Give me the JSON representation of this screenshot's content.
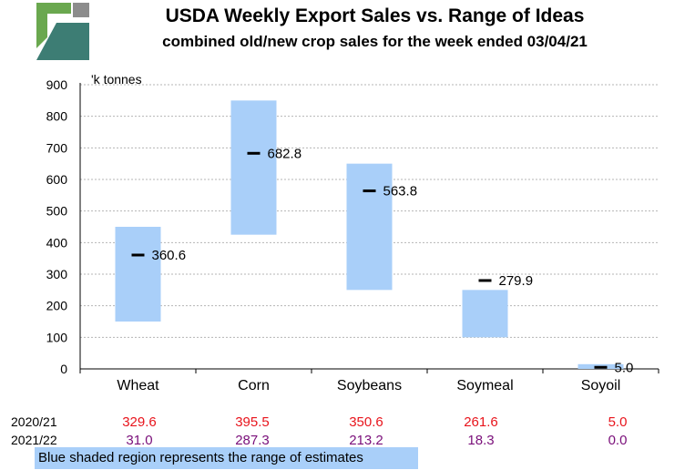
{
  "colors": {
    "range_fill": "#a9cff9",
    "marker": "#000000",
    "old_crop": "#e8141c",
    "new_crop": "#7a0f7a",
    "gridline": "#b5b5b5",
    "logo_green": "#6aa84f",
    "logo_teal": "#3d7d74",
    "logo_gray": "#8c8c8c"
  },
  "logo": {
    "name": "company-logo"
  },
  "chart_data": {
    "type": "range-bar",
    "title": "USDA Weekly Export Sales vs. Range of Ideas",
    "subtitle": "combined old/new crop sales for the week ended 03/04/21",
    "unit_label": "'k tonnes",
    "ylim": [
      0,
      900
    ],
    "yticks": [
      0,
      100,
      200,
      300,
      400,
      500,
      600,
      700,
      800,
      900
    ],
    "grid": true,
    "categories": [
      "Wheat",
      "Corn",
      "Soybeans",
      "Soymeal",
      "Soyoil"
    ],
    "range_low": [
      150,
      425,
      250,
      100,
      0
    ],
    "range_high": [
      450,
      850,
      650,
      250,
      15
    ],
    "actual": [
      360.6,
      682.8,
      563.8,
      279.9,
      5.0
    ],
    "actual_labels": [
      "360.6",
      "682.8",
      "563.8",
      "279.9",
      "5.0"
    ]
  },
  "table": {
    "rows": [
      {
        "label": "2020/21",
        "values": [
          "329.6",
          "395.5",
          "350.6",
          "261.6",
          "5.0"
        ]
      },
      {
        "label": "2021/22",
        "values": [
          "31.0",
          "287.3",
          "213.2",
          "18.3",
          "0.0"
        ]
      }
    ]
  },
  "note": "Blue shaded region represents the range of estimates"
}
